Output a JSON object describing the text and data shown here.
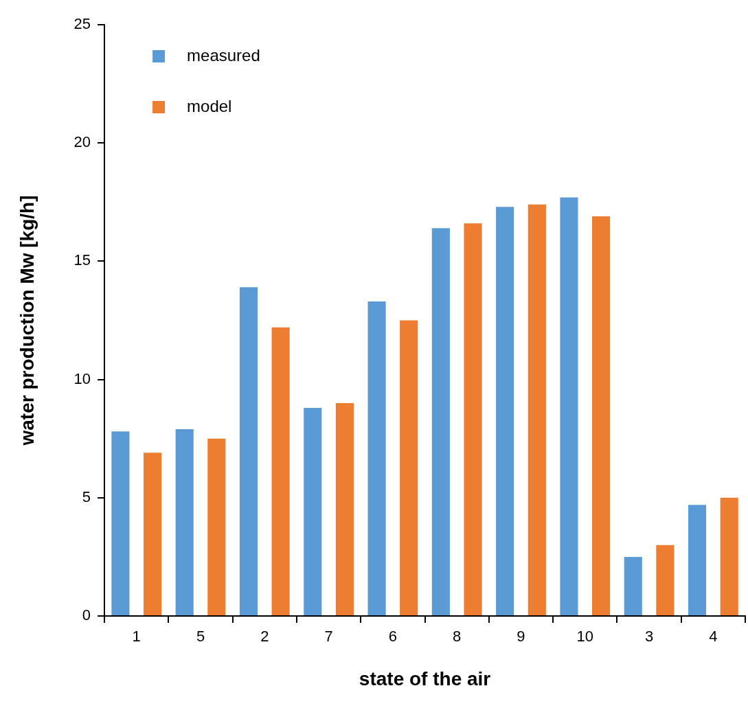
{
  "chart_data": {
    "type": "bar",
    "xlabel": "state of the air",
    "ylabel": "water production Mw [kg/h]",
    "categories": [
      "1",
      "5",
      "2",
      "7",
      "6",
      "8",
      "9",
      "10",
      "3",
      "4"
    ],
    "series": [
      {
        "name": "measured",
        "color": "#5b9bd5",
        "values": [
          7.8,
          7.9,
          13.9,
          8.8,
          13.3,
          16.4,
          17.3,
          17.7,
          2.5,
          4.7
        ]
      },
      {
        "name": "model",
        "color": "#ed7d31",
        "values": [
          6.9,
          7.5,
          12.2,
          9.0,
          12.5,
          16.6,
          17.4,
          16.9,
          3.0,
          5.0
        ]
      }
    ],
    "ylim": [
      0,
      25
    ],
    "yticks": [
      0,
      5,
      10,
      15,
      20,
      25
    ],
    "grid": false,
    "legend": "top left"
  }
}
